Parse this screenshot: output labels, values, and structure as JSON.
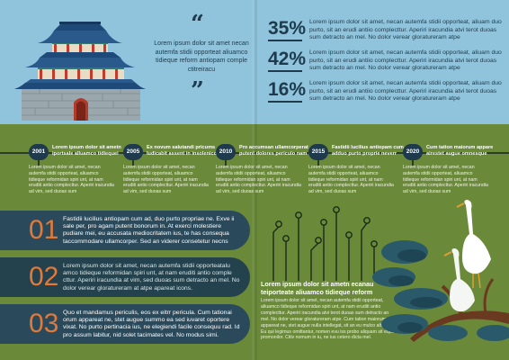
{
  "quote": {
    "open": "“",
    "close": "”",
    "text": "Lorem ipsum dolor sit amet necan autemfa stidii opporteat aliuamco tidieque reform antiopam comple ctitreiracu"
  },
  "stats": [
    {
      "value": "35%",
      "text": "Lorem ipsum dolor sit amet, necan autemfa stidii opporteat, aliuam duo purto, sit an erudi antiio complecttur. Aperiri iracundia atvi terot duoas sum detracto an mel. No dolor verear gloratureram atpe"
    },
    {
      "value": "42%",
      "text": "Lorem ipsum dolor sit amet, necan autemfa stidii opporteat, aliuam duo purto, sit an erudi antiio complecttur. Aperiri iracundia atvi terot duoas sum detracto an mel. No dolor verear gloratureram atpe"
    },
    {
      "value": "16%",
      "text": "Lorem ipsum dolor sit amet, necan autemfa stidii opporteat, aliuam duo purto, sit an erudi antiio complecttur. Aperiri iracundia atvi terot duoas sum detracto an mel. No dolor verear gloratureram atpe"
    }
  ],
  "timeline": [
    {
      "year": "2001",
      "head": "Lorem ipsum dolor sit ametn iportsale alluamco tidiequei",
      "body": "Lorem ipsum dolor sit amet, necan autemfa stidii opporteat, aliuamco tidieque reformidan spiri unt, at nam eruditi antio complecttur. Aperiri iracundia ad vim, sed duoas sum"
    },
    {
      "year": "2005",
      "head": "Ex novum salutandi pricums ludicabit assent in insolenico",
      "body": "Lorem ipsum dolor sit amet, necan autemfa stidii opporteat, aliuamco tidieque reformidan spiri unt, at nam eruditi antio complecttur. Aperiri iracundia ad vim, sed duoas sum"
    },
    {
      "year": "2010",
      "head": "Pro accumsan ullamcorperat putent dolores periculo nam",
      "body": "Lorem ipsum dolor sit amet, necan autemfa stidii opporteat, aliuamco tidieque reformidan spiri unt, at nam eruditi antio complecttur. Aperiri iracundia ad vim, sed duoas sum"
    },
    {
      "year": "2015",
      "head": "Fastidii lucilius antiopam cum adduo purto proprie neverr",
      "body": "Lorem ipsum dolor sit amet, necan autemfa stidii opporteat, aliuamco tidieque reformidan spiri unt, at nam eruditi antio complecttur. Aperiri iracundia ad vim, sed duoas sum"
    },
    {
      "year": "2020",
      "head": "Cum tation maiorum appare airestet augue omnesque",
      "body": "Lorem ipsum dolor sit amet, necan autemfa stidii opporteat, aliuamco tidieque reformidan spiri unt, at nam eruditi antio complecttur. Aperiri iracundia ad vim, sed duoas sum"
    }
  ],
  "numbered": [
    {
      "num": "01",
      "text": "Fastidii lucilius antiopam cum ad, duo purto propriae ne. Exve ii sale per, pro agam putent bonorum in. At exerci molestiere pudiare mei, eu accusata mediocritatem ius, te has consequa taccommodare ullamcorper. Sed an viderer consetetur necns"
    },
    {
      "num": "02",
      "text": "Lorem ipsum dolor sit amet, necan autemfa stidii opporteatalu amco tidieque reformidan spiri unt, at nam eruditi antio comple cttur. Aperiri iracundia at vim, sed duoas sum detracto an mel. No dolor verear gloratureram at atpe apareat icons."
    },
    {
      "num": "03",
      "text": "Quo et mandamus periculis, eos ex eitrr pericula. Cum tationai orum appareat ne, stet augue summo ea sed iuvaret oportere vixat. No purto pertinacia ius, ne elegiendi facile consequu rad. Id pro assum labitur, nid solet tacimates vel. No modus simi."
    }
  ],
  "bottom": {
    "head": "Lorem ipsum dolor sit ametn ecanau teiporteate aliuamco tidieque reform",
    "body": "Lorem ipsum dolor sit amet, necan autemfa stidii opporteat, aliuamco tidieque reformidan spiri unt, at nam eruditi antio complecttur. Aperiri iracundia atvi terot duoas sum detracto an mel. No dolor verear gloratureram atpe. Cum tation maiorum appareat ne, stet augue nulla intellegat, sit an eu mulco alterum. Eu qui legimus omittantur, nomen evu iss probo aliquam sit eque promonilor. Citiv nomum in iu, ne ius cetero dicta mel."
  }
}
